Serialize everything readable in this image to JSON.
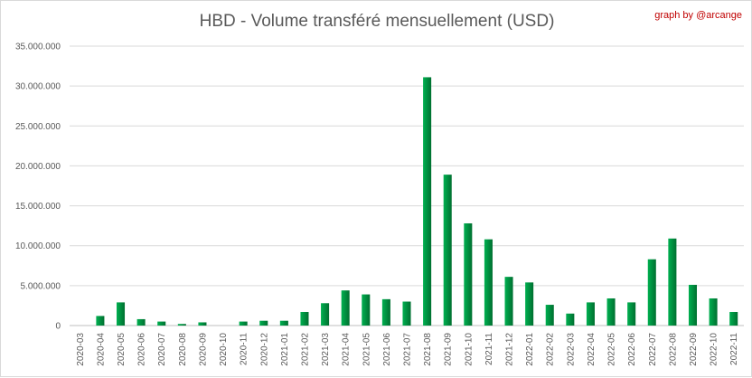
{
  "chart_data": {
    "type": "bar",
    "title": "HBD - Volume transféré mensuellement (USD)",
    "credit": "graph by @arcange",
    "categories": [
      "2020-03",
      "2020-04",
      "2020-05",
      "2020-06",
      "2020-07",
      "2020-08",
      "2020-09",
      "2020-10",
      "2020-11",
      "2020-12",
      "2021-01",
      "2021-02",
      "2021-03",
      "2021-04",
      "2021-05",
      "2021-06",
      "2021-07",
      "2021-08",
      "2021-09",
      "2021-10",
      "2021-11",
      "2021-12",
      "2022-01",
      "2022-02",
      "2022-03",
      "2022-04",
      "2022-05",
      "2022-06",
      "2022-07",
      "2022-08",
      "2022-09",
      "2022-10",
      "2022-11"
    ],
    "values": [
      0,
      1200000,
      2900000,
      800000,
      500000,
      200000,
      400000,
      0,
      500000,
      600000,
      600000,
      1700000,
      2800000,
      4400000,
      3900000,
      3300000,
      3000000,
      31100000,
      18900000,
      12800000,
      10800000,
      6100000,
      5400000,
      2600000,
      1500000,
      2900000,
      3400000,
      2900000,
      8300000,
      10900000,
      5100000,
      3400000,
      1700000
    ],
    "ylim": [
      0,
      35000000
    ],
    "yticks": [
      0,
      5000000,
      10000000,
      15000000,
      20000000,
      25000000,
      30000000,
      35000000
    ],
    "ytick_labels": [
      "0",
      "5.000.000",
      "10.000.000",
      "15.000.000",
      "20.000.000",
      "25.000.000",
      "30.000.000",
      "35.000.000"
    ],
    "grid": true,
    "bar_color_light": "#00b050",
    "bar_color_dark": "#006f30"
  }
}
